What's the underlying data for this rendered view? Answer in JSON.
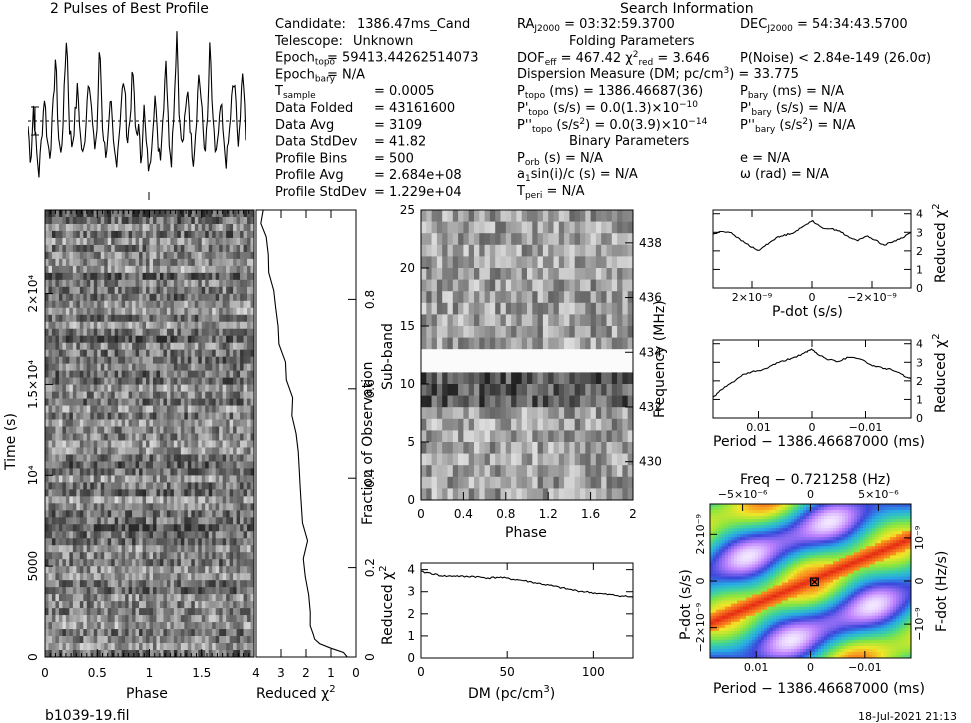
{
  "header": {
    "pulse_title": "2 Pulses of Best Profile",
    "search_title": "Search Information"
  },
  "candidate_info": [
    {
      "label": "Candidate:",
      "value": "1386.47ms_Cand"
    },
    {
      "label": "Telescope:",
      "value": "Unknown"
    },
    {
      "label": "Epoch_topo",
      "value": "= 59413.44262514073"
    },
    {
      "label": "Epoch_bary",
      "value": "= N/A"
    },
    {
      "label": "T_sample",
      "value": "0.0005"
    },
    {
      "label": "Data Folded",
      "value": "43161600"
    },
    {
      "label": "Data Avg",
      "value": "3109"
    },
    {
      "label": "Data StdDev",
      "value": "41.82"
    },
    {
      "label": "Profile Bins",
      "value": "500"
    },
    {
      "label": "Profile Avg",
      "value": "2.684e+08"
    },
    {
      "label": "Profile StdDev",
      "value": "1.229e+04"
    }
  ],
  "search_info": {
    "ra": "RA_J2000 = 03:32:59.3700",
    "dec": "DEC_J2000 = 54:34:43.5700",
    "folding_header": "Folding Parameters",
    "dof": "DOF_eff = 467.42",
    "chi2red": "χ²_red = 3.646",
    "pnoise": "P(Noise) < 2.84e-149 (26.0σ)",
    "dm_line": "Dispersion Measure (DM; pc/cm³) = 33.775",
    "p_topo": "P_topo (ms) = 1386.46687(36)",
    "pd_topo": "P'_topo (s/s) = 0.0(1.3)×10⁻¹⁰",
    "pdd_topo": "P''_topo (s/s²) = 0.0(3.9)×10⁻¹⁴",
    "p_bary": "P_bary (ms) = N/A",
    "pd_bary": "P'_bary (s/s) = N/A",
    "pdd_bary": "P''_bary (s/s²) = N/A",
    "binary_header": "Binary Parameters",
    "p_orb": "P_orb (s) = N/A",
    "a1": "a₁sin(i)/c (s) = N/A",
    "t_peri": "T_peri = N/A",
    "ecc": "e = N/A",
    "omega": "ω (rad) = N/A"
  },
  "footer": {
    "filename": "b1039-19.fil",
    "date": "18-Jul-2021 21:13"
  },
  "chart_data": [
    {
      "id": "pulse_profile",
      "type": "line",
      "title": "2 Pulses of Best Profile",
      "x": {
        "range": [
          0,
          2
        ]
      },
      "values": [
        0.35,
        0.12,
        0.48,
        0.2,
        0.05,
        0.3,
        0.55,
        0.25,
        0.18,
        0.42,
        0.8,
        0.3,
        0.15,
        0.5,
        0.95,
        0.35,
        0.22,
        0.4,
        0.6,
        0.28,
        0.14,
        0.38,
        0.7,
        0.45,
        0.2,
        0.32,
        0.88,
        0.36,
        0.18,
        0.26,
        0.5,
        0.22,
        0.12,
        0.3,
        0.55,
        0.62,
        0.24,
        0.4,
        0.72,
        0.3,
        0.35,
        0.12,
        0.48,
        0.2,
        0.05,
        0.3,
        0.55,
        0.25,
        0.18,
        0.42,
        0.8,
        0.3,
        0.15,
        0.5,
        0.95,
        0.35,
        0.22,
        0.4,
        0.6,
        0.28,
        0.14,
        0.38,
        0.7,
        0.45,
        0.2,
        0.32,
        0.88,
        0.36,
        0.18,
        0.26,
        0.5,
        0.22,
        0.12,
        0.3,
        0.55,
        0.62,
        0.24,
        0.4,
        0.72,
        0.3
      ]
    },
    {
      "id": "time_phase",
      "type": "heatmap",
      "xlabel": "Phase",
      "ylabel": "Time (s)",
      "x_ticks": [
        "0",
        "0.5",
        "1",
        "1.5"
      ],
      "x_tick_values": [
        0,
        0.5,
        1,
        1.5
      ],
      "xlim": [
        0,
        2
      ],
      "y_ticks": [
        "0",
        "5000",
        "10⁴",
        "1.5×10⁴",
        "2×10⁴"
      ],
      "y_tick_values": [
        0,
        5000,
        10000,
        15000,
        20000
      ],
      "ylim": [
        0,
        24600
      ],
      "rows": 64
    },
    {
      "id": "reduced_chi2_time",
      "type": "line",
      "xlabel": "Reduced χ²",
      "ylabel": "Fraction of Observation",
      "x_ticks": [
        "4",
        "3",
        "2",
        "1",
        "0"
      ],
      "x_tick_values": [
        4,
        3,
        2,
        1,
        0
      ],
      "xlim": [
        4,
        0
      ],
      "y_ticks": [
        "0",
        "0.2",
        "0.4",
        "0.6",
        "0.8"
      ],
      "y_tick_values": [
        0,
        0.2,
        0.4,
        0.6,
        0.8
      ],
      "ylim": [
        0,
        1
      ],
      "fraction": [
        0.0,
        0.01,
        0.02,
        0.03,
        0.04,
        0.05,
        0.07,
        0.1,
        0.14,
        0.18,
        0.22,
        0.26,
        0.3,
        0.34,
        0.38,
        0.42,
        0.46,
        0.5,
        0.54,
        0.58,
        0.62,
        0.66,
        0.7,
        0.74,
        0.78,
        0.82,
        0.86,
        0.9,
        0.94,
        0.97,
        1.0
      ],
      "chi2": [
        0.35,
        0.5,
        1.1,
        1.5,
        1.7,
        1.75,
        1.8,
        1.85,
        1.9,
        1.95,
        2.05,
        2.0,
        2.15,
        2.1,
        2.2,
        2.25,
        2.35,
        2.4,
        2.5,
        2.6,
        2.7,
        2.8,
        3.0,
        3.1,
        3.25,
        3.35,
        3.45,
        3.55,
        3.65,
        3.75,
        3.8
      ]
    },
    {
      "id": "subband_phase",
      "type": "heatmap",
      "xlabel": "Phase",
      "ylabel": "Sub-band",
      "y2label": "Frequency (MHz)",
      "x_ticks": [
        "0",
        "0.4",
        "0.8",
        "1.2",
        "1.6",
        "2"
      ],
      "x_tick_values": [
        0,
        0.4,
        0.8,
        1.2,
        1.6,
        2
      ],
      "xlim": [
        0,
        2
      ],
      "y_ticks": [
        "0",
        "5",
        "10",
        "15",
        "20",
        "25"
      ],
      "y_tick_values": [
        0,
        5,
        10,
        15,
        20,
        25
      ],
      "ylim": [
        0,
        25
      ],
      "y2_ticks": [
        "430",
        "432",
        "434",
        "436",
        "438"
      ],
      "y2_tick_values": [
        430,
        432,
        434,
        436,
        438
      ],
      "y2lim": [
        428.6,
        439.2
      ],
      "rows": 25,
      "blank_rows": [
        11,
        12
      ]
    },
    {
      "id": "dm_curve",
      "type": "line",
      "xlabel": "DM (pc/cm³)",
      "ylabel": "Reduced χ²",
      "x_ticks": [
        "0",
        "50",
        "100"
      ],
      "x_tick_values": [
        0,
        50,
        100
      ],
      "xlim": [
        0,
        123
      ],
      "y_ticks": [
        "0",
        "1",
        "2",
        "3",
        "4"
      ],
      "y_tick_values": [
        0,
        1,
        2,
        3,
        4
      ],
      "ylim": [
        0,
        4.3
      ],
      "x": [
        0,
        5,
        10,
        15,
        20,
        25,
        30,
        35,
        40,
        45,
        50,
        55,
        60,
        65,
        70,
        75,
        80,
        85,
        90,
        95,
        100,
        105,
        110,
        115,
        120,
        123
      ],
      "y": [
        3.9,
        3.85,
        3.75,
        3.7,
        3.72,
        3.68,
        3.7,
        3.65,
        3.62,
        3.66,
        3.6,
        3.55,
        3.5,
        3.42,
        3.35,
        3.28,
        3.2,
        3.12,
        3.05,
        3.0,
        2.95,
        2.9,
        2.86,
        2.82,
        2.78,
        2.75
      ]
    },
    {
      "id": "pdot_curve",
      "type": "line",
      "xlabel": "P-dot (s/s)",
      "ylabel": "Reduced χ²",
      "x_ticks": [
        "2×10⁻⁹",
        "0",
        "−2×10⁻⁹"
      ],
      "x_tick_values": [
        2e-09,
        0,
        -2e-09
      ],
      "xlim": [
        3.3e-09,
        -3.3e-09
      ],
      "y_ticks": [
        "0",
        "1",
        "2",
        "3",
        "4"
      ],
      "y_tick_values": [
        0,
        1,
        2,
        3,
        4
      ],
      "ylim": [
        0,
        4.2
      ],
      "x": [
        3.3e-09,
        3e-09,
        2.7e-09,
        2.4e-09,
        2.1e-09,
        1.8e-09,
        1.5e-09,
        1.2e-09,
        9e-10,
        6e-10,
        3e-10,
        0,
        -3e-10,
        -6e-10,
        -9e-10,
        -1.2e-09,
        -1.5e-09,
        -1.8e-09,
        -2.1e-09,
        -2.4e-09,
        -2.7e-09,
        -3e-09,
        -3.3e-09
      ],
      "y": [
        2.9,
        3.05,
        3.0,
        2.6,
        2.3,
        2.0,
        2.35,
        2.7,
        2.85,
        3.0,
        3.3,
        3.65,
        3.25,
        3.2,
        3.1,
        2.75,
        2.55,
        2.8,
        2.6,
        2.3,
        2.5,
        2.7,
        3.0
      ]
    },
    {
      "id": "period_curve",
      "type": "line",
      "xlabel": "Period − 1386.46687000 (ms)",
      "ylabel": "Reduced χ²",
      "x_ticks": [
        "0.01",
        "0",
        "−0.01"
      ],
      "x_tick_values": [
        0.01,
        0,
        -0.01
      ],
      "xlim": [
        0.0185,
        -0.0185
      ],
      "y_ticks": [
        "0",
        "1",
        "2",
        "3",
        "4"
      ],
      "y_tick_values": [
        0,
        1,
        2,
        3,
        4
      ],
      "ylim": [
        0,
        4.2
      ],
      "x": [
        0.0185,
        0.017,
        0.015,
        0.013,
        0.011,
        0.009,
        0.007,
        0.005,
        0.003,
        0.001,
        0,
        -0.001,
        -0.003,
        -0.005,
        -0.007,
        -0.009,
        -0.011,
        -0.013,
        -0.015,
        -0.017,
        -0.0185
      ],
      "y": [
        1.1,
        1.5,
        1.9,
        2.3,
        2.5,
        2.6,
        2.9,
        3.1,
        3.3,
        3.55,
        3.7,
        3.45,
        3.15,
        3.05,
        3.3,
        3.2,
        2.85,
        2.7,
        2.6,
        2.3,
        2.1
      ]
    },
    {
      "id": "pdot_period_map",
      "type": "heatmap",
      "title": "Freq − 0.721258 (Hz)",
      "xlabel": "Period − 1386.46687000 (ms)",
      "ylabel": "P-dot (s/s)",
      "y2label": "F-dot (Hz/s)",
      "x_ticks": [
        "0.01",
        "0",
        "−0.01"
      ],
      "x_tick_values": [
        0.01,
        0,
        -0.01
      ],
      "xlim": [
        0.0185,
        -0.0185
      ],
      "top_ticks": [
        "−5×10⁻⁶",
        "0",
        "5×10⁻⁶"
      ],
      "top_tick_values": [
        -5e-06,
        0,
        5e-06
      ],
      "y_ticks": [
        "2×10⁻⁹",
        "0",
        "−2×10⁻⁹"
      ],
      "y_tick_values": [
        2e-09,
        0,
        -2e-09
      ],
      "ylim": [
        3.3e-09,
        -3.3e-09
      ],
      "y2_ticks": [
        "10⁻⁹",
        "0",
        "−10⁻⁹"
      ],
      "y2_tick_values": [
        1e-09,
        0,
        -1e-09
      ],
      "best": {
        "period": 0,
        "pdot": 0
      }
    }
  ]
}
